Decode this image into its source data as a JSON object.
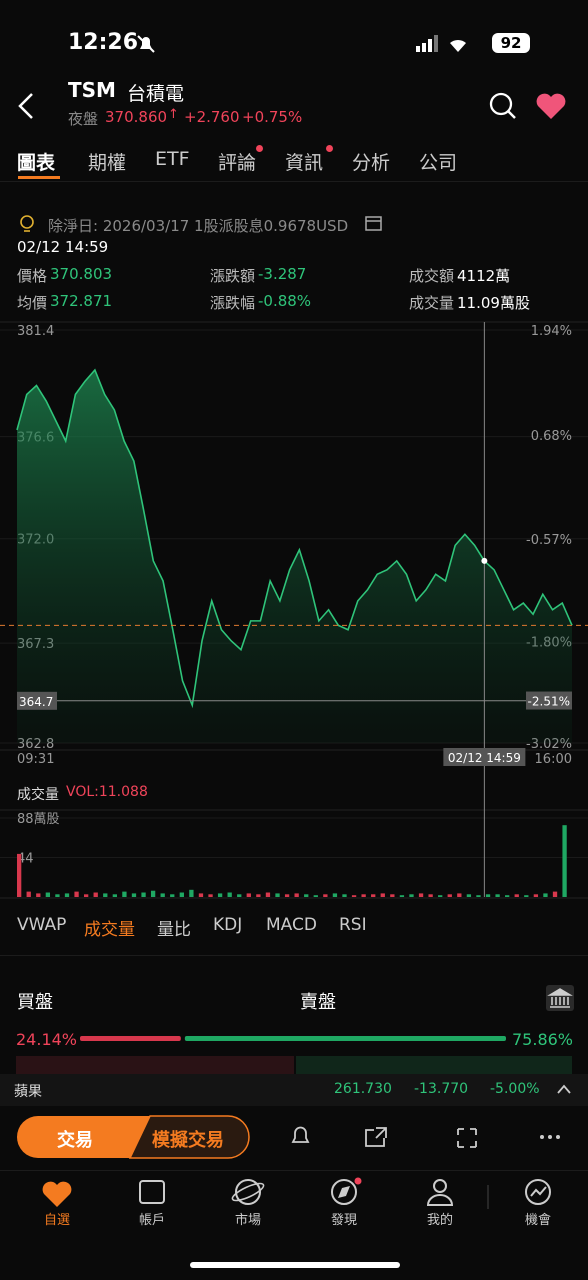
{
  "status_bar": {
    "time": "12:26",
    "battery": "92"
  },
  "header": {
    "symbol": "TSM",
    "name": "台積電",
    "session": "夜盤",
    "price": "370.860",
    "change": "+2.760",
    "change_pct": "+0.75%"
  },
  "tabs": [
    "圖表",
    "期權",
    "ETF",
    "評論",
    "資訊",
    "分析",
    "公司"
  ],
  "dividend": "除淨日: 2026/03/17 1股派股息0.9678USD",
  "quote_time": "02/12 14:59",
  "stats": [
    {
      "label": "價格",
      "value": "370.803"
    },
    {
      "label": "漲跌額",
      "value": "-3.287"
    },
    {
      "label": "成交額",
      "value": "4112萬"
    },
    {
      "label": "均價",
      "value": "372.871"
    },
    {
      "label": "漲跌幅",
      "value": "-0.88%"
    },
    {
      "label": "成交量",
      "value": "11.09萬股"
    }
  ],
  "chart_data": [
    {
      "type": "line",
      "color": "#2fc47a",
      "values": [
        376.9,
        378.5,
        378.9,
        378.2,
        377.3,
        376.4,
        378.5,
        379.1,
        379.6,
        378.5,
        377.8,
        376.4,
        375.5,
        373.3,
        371.0,
        370.1,
        367.9,
        365.6,
        364.5,
        367.4,
        369.2,
        367.9,
        367.4,
        367.0,
        368.3,
        368.3,
        370.1,
        369.2,
        370.6,
        371.5,
        370.1,
        368.3,
        368.8,
        368.1,
        367.9,
        369.2,
        369.7,
        370.4,
        370.6,
        371.0,
        370.4,
        369.2,
        369.7,
        370.4,
        370.1,
        371.7,
        372.2,
        371.7,
        371.0,
        370.6,
        369.7,
        368.8,
        369.1,
        368.6,
        369.5,
        368.8,
        369.1,
        368.1
      ],
      "ylim": [
        362.8,
        381.4
      ],
      "yticks": [
        381.4,
        376.6,
        {
          "value": 372,
          "label": "372.0"
        },
        367.3,
        362.8
      ],
      "y2lim": [
        -3.02,
        1.94
      ],
      "y2ticks": [
        {
          "value": 1.94,
          "label": "1.94%"
        },
        {
          "value": 0.68,
          "label": "0.68%"
        },
        {
          "value": -0.57,
          "label": "-0.57%"
        },
        {
          "value": -1.8,
          "label": "-1.80%"
        },
        {
          "value": -3.02,
          "label": "-3.02%"
        }
      ],
      "x_labels": [
        "09:31",
        "16:00"
      ],
      "reference_line": 368.1,
      "crosshair": {
        "index": 48,
        "y": 364.7,
        "y2": {
          "value": -2.51,
          "label": "-2.51%"
        },
        "time": "02/12 14:59"
      }
    },
    {
      "type": "bar",
      "title": "成交量",
      "subtitle": "VOL:11.088",
      "values": [
        48,
        6,
        4,
        5,
        3,
        4,
        6,
        3,
        5,
        4,
        3,
        6,
        4,
        5,
        7,
        4,
        3,
        5,
        8,
        4,
        3,
        4,
        5,
        3,
        4,
        3,
        5,
        4,
        3,
        4,
        3,
        2,
        3,
        4,
        3,
        2,
        3,
        3,
        4,
        3,
        2,
        3,
        4,
        3,
        2,
        3,
        4,
        3,
        2,
        3,
        3,
        2,
        3,
        2,
        3,
        4,
        6,
        80
      ],
      "ylim": [
        0,
        88
      ],
      "yticks": [
        {
          "value": 88,
          "label": "88萬股"
        },
        44
      ]
    }
  ],
  "indicators": [
    "VWAP",
    "成交量",
    "量比",
    "KDJ",
    "MACD",
    "RSI"
  ],
  "order_flow": {
    "buy_title": "買盤",
    "sell_title": "賣盤",
    "buy": {
      "value": 24.14,
      "label": "24.14%"
    },
    "sell": {
      "value": 75.86,
      "label": "75.86%"
    }
  },
  "ticker": {
    "name": "蘋果",
    "price": "261.730",
    "change": "-13.770",
    "change_pct": "-5.00%"
  },
  "actions": [
    "交易",
    "模擬交易"
  ],
  "nav": [
    "自選",
    "帳戶",
    "市場",
    "發現",
    "我的",
    "機會"
  ]
}
